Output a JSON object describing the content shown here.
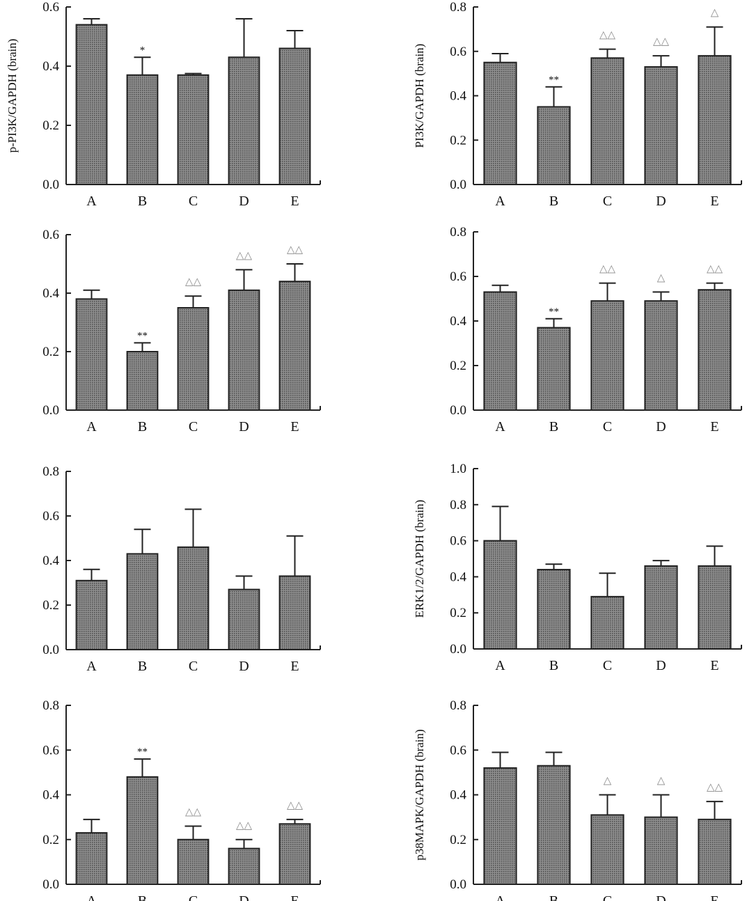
{
  "chart_data": [
    {
      "type": "bar",
      "ylabel": "p-PI3K/GAPDH (brain)",
      "ylim": [
        0,
        0.6
      ],
      "yticks": [
        "0.0",
        "0.2",
        "0.4",
        "0.6"
      ],
      "categories": [
        "A",
        "B",
        "C",
        "D",
        "E"
      ],
      "values": [
        0.54,
        0.37,
        0.37,
        0.43,
        0.46
      ],
      "errors": [
        0.02,
        0.06,
        0.005,
        0.13,
        0.06
      ],
      "significance": [
        "",
        "*",
        "",
        "",
        ""
      ]
    },
    {
      "type": "bar",
      "ylabel": "PI3K/GAPDH (brain)",
      "ylim": [
        0,
        0.8
      ],
      "yticks": [
        "0.0",
        "0.2",
        "0.4",
        "0.6",
        "0.8"
      ],
      "categories": [
        "A",
        "B",
        "C",
        "D",
        "E"
      ],
      "values": [
        0.55,
        0.35,
        0.57,
        0.53,
        0.58
      ],
      "errors": [
        0.04,
        0.09,
        0.04,
        0.05,
        0.13
      ],
      "significance": [
        "",
        "**",
        "△△",
        "△△",
        "△"
      ]
    },
    {
      "type": "bar",
      "ylabel": "",
      "ylim": [
        0,
        0.6
      ],
      "yticks": [
        "0.0",
        "0.2",
        "0.4",
        "0.6"
      ],
      "categories": [
        "A",
        "B",
        "C",
        "D",
        "E"
      ],
      "values": [
        0.38,
        0.2,
        0.35,
        0.41,
        0.44
      ],
      "errors": [
        0.03,
        0.03,
        0.04,
        0.07,
        0.06
      ],
      "significance": [
        "",
        "**",
        "△△",
        "△△",
        "△△"
      ]
    },
    {
      "type": "bar",
      "ylabel": "",
      "ylim": [
        0,
        0.8
      ],
      "yticks": [
        "0.0",
        "0.2",
        "0.4",
        "0.6",
        "0.8"
      ],
      "categories": [
        "A",
        "B",
        "C",
        "D",
        "E"
      ],
      "values": [
        0.53,
        0.37,
        0.49,
        0.49,
        0.54
      ],
      "errors": [
        0.03,
        0.04,
        0.08,
        0.04,
        0.03
      ],
      "significance": [
        "",
        "**",
        "△△",
        "△",
        "△△"
      ]
    },
    {
      "type": "bar",
      "ylabel": "",
      "ylim": [
        0,
        0.8
      ],
      "yticks": [
        "0.0",
        "0.2",
        "0.4",
        "0.6",
        "0.8"
      ],
      "categories": [
        "A",
        "B",
        "C",
        "D",
        "E"
      ],
      "values": [
        0.31,
        0.43,
        0.46,
        0.27,
        0.33
      ],
      "errors": [
        0.05,
        0.11,
        0.17,
        0.06,
        0.18
      ],
      "significance": [
        "",
        "",
        "",
        "",
        ""
      ]
    },
    {
      "type": "bar",
      "ylabel": "ERK1/2/GAPDH (brain)",
      "ylim": [
        0,
        1.0
      ],
      "yticks": [
        "0.0",
        "0.2",
        "0.4",
        "0.6",
        "0.8",
        "1.0"
      ],
      "categories": [
        "A",
        "B",
        "C",
        "D",
        "E"
      ],
      "values": [
        0.6,
        0.44,
        0.29,
        0.46,
        0.46
      ],
      "errors": [
        0.19,
        0.03,
        0.13,
        0.03,
        0.11
      ],
      "significance": [
        "",
        "",
        "",
        "",
        ""
      ]
    },
    {
      "type": "bar",
      "ylabel": "",
      "ylim": [
        0,
        0.8
      ],
      "yticks": [
        "0.0",
        "0.2",
        "0.4",
        "0.6",
        "0.8"
      ],
      "categories": [
        "A",
        "B",
        "C",
        "D",
        "E"
      ],
      "values": [
        0.23,
        0.48,
        0.2,
        0.16,
        0.27
      ],
      "errors": [
        0.06,
        0.08,
        0.06,
        0.04,
        0.02
      ],
      "significance": [
        "",
        "**",
        "△△",
        "△△",
        "△△"
      ]
    },
    {
      "type": "bar",
      "ylabel": "p38MAPK/GAPDH (brain)",
      "ylim": [
        0,
        0.8
      ],
      "yticks": [
        "0.0",
        "0.2",
        "0.4",
        "0.6",
        "0.8"
      ],
      "categories": [
        "A",
        "B",
        "C",
        "D",
        "E"
      ],
      "values": [
        0.52,
        0.53,
        0.31,
        0.3,
        0.29
      ],
      "errors": [
        0.07,
        0.06,
        0.09,
        0.1,
        0.08
      ],
      "significance": [
        "",
        "",
        "△",
        "△",
        "△△"
      ]
    }
  ]
}
